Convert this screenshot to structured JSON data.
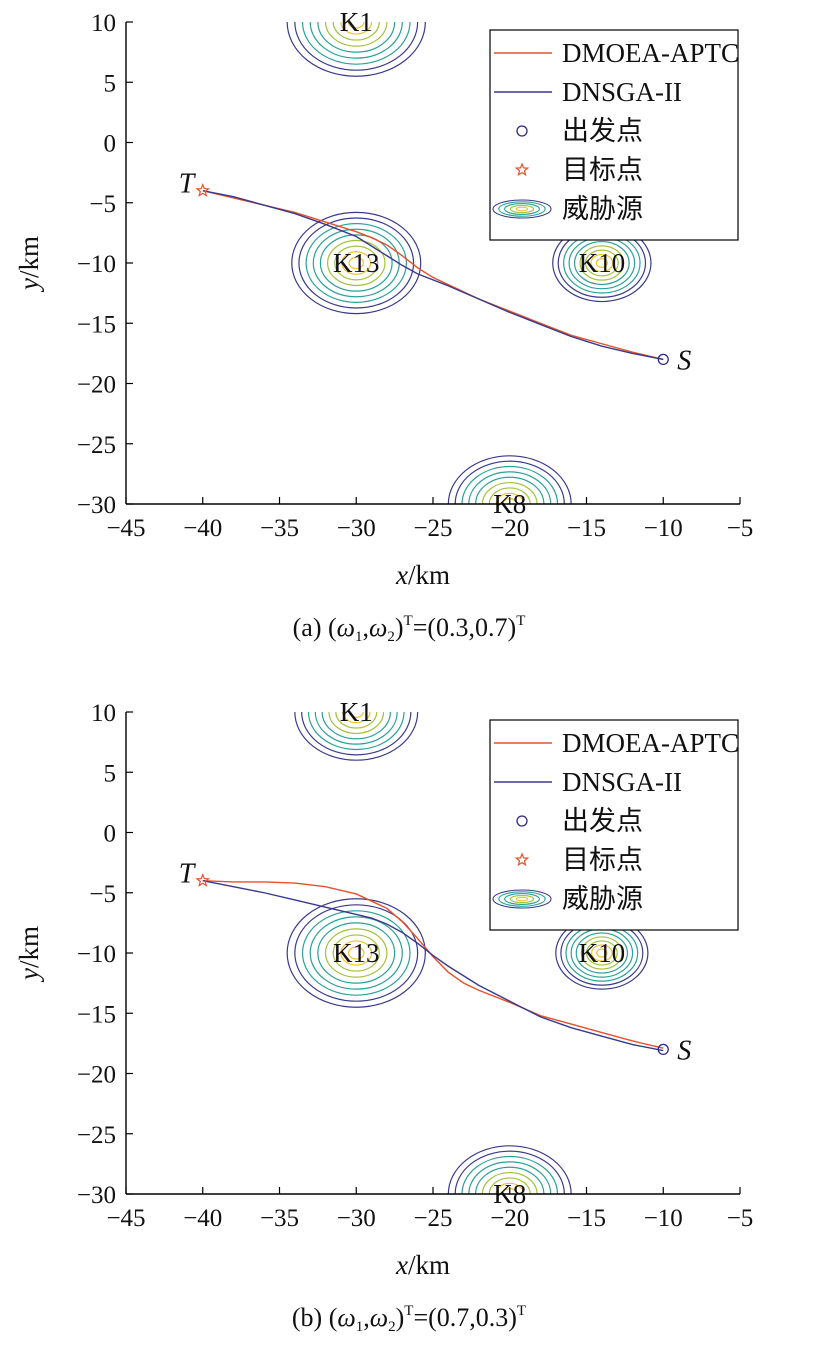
{
  "colors": {
    "dmoea": "#e8502a",
    "dnsga": "#3a3a8c",
    "axis": "#000000",
    "start_marker": "#2b2b8c",
    "target_marker": "#e8502a",
    "contour_outer": "#3a3a8c",
    "contour_mid": "#2aa198",
    "contour_inner": "#a3c23a",
    "contour_core": "#f2c12e"
  },
  "legend": {
    "entries": [
      {
        "label": "DMOEA-APTC",
        "symbol": "line-dmoea"
      },
      {
        "label": "DNSGA-II",
        "symbol": "line-dnsga"
      },
      {
        "label": "出发点",
        "symbol": "circle-marker"
      },
      {
        "label": "目标点",
        "symbol": "star-marker"
      },
      {
        "label": "威胁源",
        "symbol": "contour-ellipses"
      }
    ]
  },
  "chart_data": [
    {
      "type": "line",
      "panel": "a",
      "caption": {
        "prefix": "(a) (",
        "w1": "ω",
        "w1_sub": "1",
        "comma": ",",
        "w2": "ω",
        "w2_sub": "2",
        "close": ")",
        "sup1": "T",
        "value": "=(0.3,0.7)",
        "sup2": "T"
      },
      "xlabel_var": "x",
      "xlabel_unit": "/km",
      "ylabel_var": "y",
      "ylabel_unit": "/km",
      "xlim": [
        -45,
        -5
      ],
      "ylim": [
        -30,
        10
      ],
      "xticks": [
        -45,
        -40,
        -35,
        -30,
        -25,
        -20,
        -15,
        -10,
        -5
      ],
      "xtick_labels": [
        "−45",
        "−40",
        "−35",
        "−30",
        "−25",
        "−20",
        "−15",
        "−10",
        "−5"
      ],
      "yticks": [
        10,
        5,
        0,
        -5,
        -10,
        -15,
        -20,
        -25,
        -30
      ],
      "ytick_labels": [
        "10",
        "5",
        "0",
        "−5",
        "−10",
        "−15",
        "−20",
        "−25",
        "−30"
      ],
      "threats": [
        {
          "name": "K1",
          "x": -30,
          "y": 10,
          "radius": 4.5
        },
        {
          "name": "K13",
          "x": -30,
          "y": -10,
          "radius": 4.2
        },
        {
          "name": "K10",
          "x": -14,
          "y": -10,
          "radius": 3.2
        },
        {
          "name": "K8",
          "x": -20,
          "y": -30,
          "radius": 4.0
        }
      ],
      "start": {
        "label": "S",
        "x": -10,
        "y": -18
      },
      "target": {
        "label": "T",
        "x": -40,
        "y": -4
      },
      "series": [
        {
          "name": "DMOEA-APTC",
          "x": [
            -40,
            -38,
            -36,
            -34,
            -32,
            -30,
            -29,
            -28,
            -27,
            -26,
            -25,
            -24,
            -22,
            -20,
            -18,
            -16,
            -14,
            -12,
            -10
          ],
          "y": [
            -4,
            -4.6,
            -5.2,
            -5.8,
            -6.6,
            -7.4,
            -7.9,
            -8.5,
            -9.4,
            -10.4,
            -11.2,
            -11.8,
            -13.0,
            -14.0,
            -15.0,
            -16.0,
            -16.7,
            -17.4,
            -18
          ]
        },
        {
          "name": "DNSGA-II",
          "x": [
            -40,
            -38,
            -36,
            -34,
            -32,
            -30,
            -29,
            -28,
            -27,
            -26,
            -25,
            -24,
            -22,
            -20,
            -18,
            -16,
            -14,
            -12,
            -10
          ],
          "y": [
            -4,
            -4.5,
            -5.2,
            -5.9,
            -6.8,
            -7.8,
            -8.6,
            -9.4,
            -10.2,
            -10.9,
            -11.4,
            -11.9,
            -13.0,
            -14.1,
            -15.1,
            -16.1,
            -16.9,
            -17.5,
            -18
          ]
        }
      ]
    },
    {
      "type": "line",
      "panel": "b",
      "caption": {
        "prefix": "(b) (",
        "w1": "ω",
        "w1_sub": "1",
        "comma": ",",
        "w2": "ω",
        "w2_sub": "2",
        "close": ")",
        "sup1": "T",
        "value": "=(0.7,0.3)",
        "sup2": "T"
      },
      "xlabel_var": "x",
      "xlabel_unit": "/km",
      "ylabel_var": "y",
      "ylabel_unit": "/km",
      "xlim": [
        -45,
        -5
      ],
      "ylim": [
        -30,
        10
      ],
      "xticks": [
        -45,
        -40,
        -35,
        -30,
        -25,
        -20,
        -15,
        -10,
        -5
      ],
      "xtick_labels": [
        "−45",
        "−40",
        "−35",
        "−30",
        "−25",
        "−20",
        "−15",
        "−10",
        "−5"
      ],
      "yticks": [
        10,
        5,
        0,
        -5,
        -10,
        -15,
        -20,
        -25,
        -30
      ],
      "ytick_labels": [
        "10",
        "5",
        "0",
        "−5",
        "−10",
        "−15",
        "−20",
        "−25",
        "−30"
      ],
      "threats": [
        {
          "name": "K1",
          "x": -30,
          "y": 10,
          "radius": 4.0
        },
        {
          "name": "K13",
          "x": -30,
          "y": -10,
          "radius": 4.5
        },
        {
          "name": "K10",
          "x": -14,
          "y": -10,
          "radius": 3.0
        },
        {
          "name": "K8",
          "x": -20,
          "y": -30,
          "radius": 4.0
        }
      ],
      "start": {
        "label": "S",
        "x": -10,
        "y": -18
      },
      "target": {
        "label": "T",
        "x": -40,
        "y": -4
      },
      "series": [
        {
          "name": "DMOEA-APTC",
          "x": [
            -40,
            -38,
            -36,
            -34,
            -32,
            -30,
            -28,
            -27,
            -26,
            -25,
            -24,
            -23,
            -22,
            -20,
            -18,
            -16,
            -14,
            -12,
            -10
          ],
          "y": [
            -4,
            -4.1,
            -4.1,
            -4.2,
            -4.5,
            -5.1,
            -6.3,
            -7.4,
            -8.8,
            -10.3,
            -11.6,
            -12.5,
            -13.1,
            -14.1,
            -15.2,
            -15.9,
            -16.6,
            -17.3,
            -17.9
          ]
        },
        {
          "name": "DNSGA-II",
          "x": [
            -40,
            -38,
            -36,
            -34,
            -32,
            -30,
            -29,
            -28,
            -27,
            -26,
            -25,
            -24,
            -22,
            -20,
            -18,
            -16,
            -14,
            -12,
            -10
          ],
          "y": [
            -4,
            -4.5,
            -5.0,
            -5.6,
            -6.2,
            -6.8,
            -7.1,
            -7.6,
            -8.3,
            -9.2,
            -10.2,
            -11.1,
            -12.7,
            -14.0,
            -15.3,
            -16.2,
            -16.9,
            -17.6,
            -18.1
          ]
        }
      ]
    }
  ]
}
